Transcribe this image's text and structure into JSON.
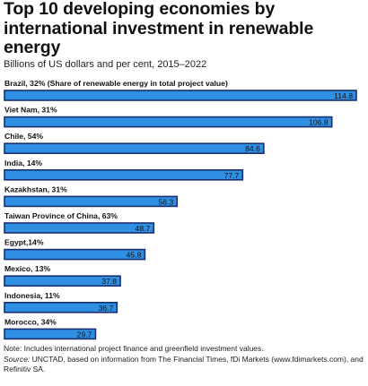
{
  "title": "Top 10 developing economies by international investment in renewable energy",
  "subtitle": "Billions of US dollars and per cent, 2015–2022",
  "note": "Note: Includes international project finance and greenfield investment values.",
  "source_lead": "Source:",
  "source_text": " UNCTAD, based on information from The Financial Times, fDi Markets (www.fdimarkets.com), and Refinitiv SA.",
  "colors": {
    "bar": "#2f8fe3",
    "bar_border": "#1a2f6e",
    "label": "#111111"
  },
  "chart_data": {
    "type": "bar",
    "orientation": "horizontal",
    "title": "Top 10 developing economies by international investment in renewable energy",
    "subtitle": "Billions of US dollars and per cent, 2015–2022",
    "categories": [
      "Brazil",
      "Viet Nam",
      "Chile",
      "India",
      "Kazakhstan",
      "Taiwan Province of China",
      "Egypt",
      "Mexico",
      "Indonesia",
      "Morocco"
    ],
    "category_labels": [
      "Brazil, 32% (Share of renewable energy in total project value)",
      "Viet Nam, 31%",
      "Chile, 54%",
      "India, 14%",
      "Kazakhstan, 31%",
      "Taiwan Province of China, 63%",
      "Egypt,14%",
      "Mexico, 13%",
      "Indonesia, 11%",
      "Morocco, 34%"
    ],
    "values": [
      114.8,
      106.8,
      84.6,
      77.7,
      56.3,
      48.7,
      45.8,
      37.8,
      36.7,
      29.7
    ],
    "value_labels": [
      "114.8",
      "106.8",
      "84.6",
      "77.7",
      "56.3",
      "48.7",
      "45.8",
      "37.8",
      "36.7",
      "29.7"
    ],
    "renewable_share_percent": [
      32,
      31,
      54,
      14,
      31,
      63,
      14,
      13,
      11,
      34
    ],
    "xlim": [
      0,
      114.8
    ],
    "grid": false,
    "legend": "none"
  }
}
